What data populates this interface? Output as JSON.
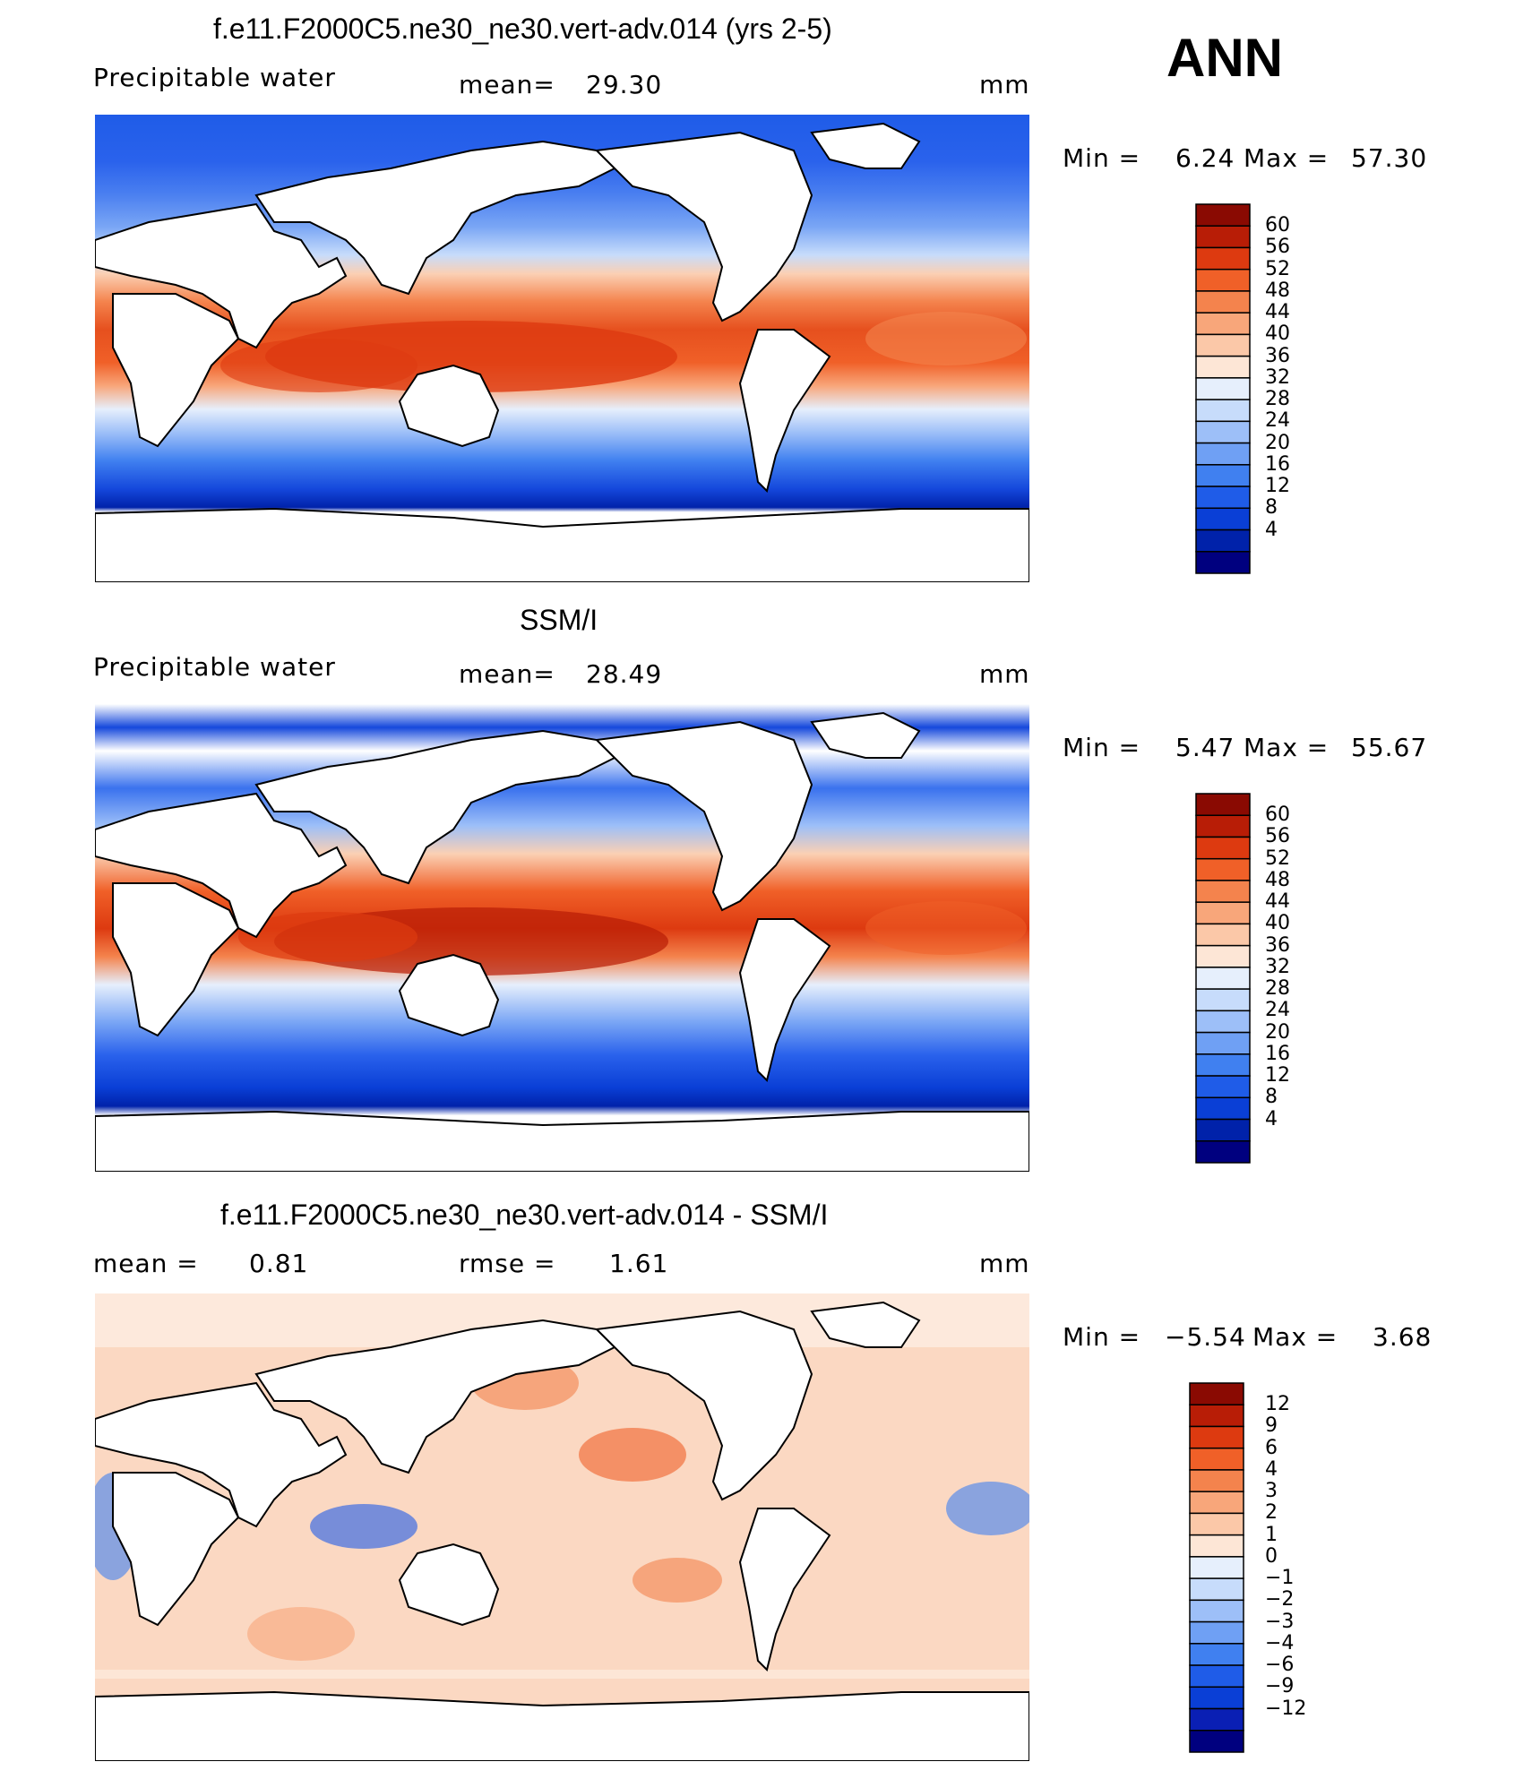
{
  "season": "ANN",
  "panels": [
    {
      "title": "f.e11.F2000C5.ne30_ne30.vert-adv.014 (yrs 2-5)",
      "left_label": "Precipitable water",
      "center_label": "mean=",
      "center_value": "29.30",
      "units": "mm",
      "min_label": "Min =",
      "min_value": "6.24",
      "max_label": "Max =",
      "max_value": "57.30"
    },
    {
      "title": "SSM/I",
      "left_label": "Precipitable water",
      "center_label": "mean=",
      "center_value": "28.49",
      "units": "mm",
      "min_label": "Min =",
      "min_value": "5.47",
      "max_label": "Max =",
      "max_value": "55.67"
    },
    {
      "title": "f.e11.F2000C5.ne30_ne30.vert-adv.014 - SSM/I",
      "left_label": "mean =",
      "left_value": "0.81",
      "center_label": "rmse =",
      "center_value": "1.61",
      "units": "mm",
      "min_label": "Min =",
      "min_value": "−5.54",
      "max_label": "Max =",
      "max_value": "3.68"
    }
  ],
  "colors": {
    "abs_scale": [
      "#00007f",
      "#0022aa",
      "#0a3fd6",
      "#1f5ce8",
      "#4080f0",
      "#6fa0f4",
      "#9dbff8",
      "#c7dcfb",
      "#e6effc",
      "#fde6d6",
      "#fbc8a8",
      "#f8a67a",
      "#f4834d",
      "#f06028",
      "#dd3a10",
      "#b81d06",
      "#8a0a02"
    ],
    "diff_scale": [
      "#00007f",
      "#0a1fb4",
      "#0a3fd6",
      "#1f5ce8",
      "#4080f0",
      "#6fa0f4",
      "#9dbff8",
      "#c7dcfb",
      "#e6effc",
      "#fde6d6",
      "#fbc8a8",
      "#f8a67a",
      "#f4834d",
      "#f06028",
      "#dd3a10",
      "#b81d06",
      "#8a0a02"
    ]
  },
  "chart_data": [
    {
      "type": "heatmap",
      "title": "f.e11.F2000C5.ne30_ne30.vert-adv.014 (yrs 2-5)",
      "variable": "Precipitable water",
      "units": "mm",
      "mean": 29.3,
      "min": 6.24,
      "max": 57.3,
      "colorbar_levels": [
        "60",
        "56",
        "52",
        "48",
        "44",
        "40",
        "36",
        "32",
        "28",
        "24",
        "20",
        "16",
        "12",
        "8",
        "4"
      ]
    },
    {
      "type": "heatmap",
      "title": "SSM/I",
      "variable": "Precipitable water",
      "units": "mm",
      "mean": 28.49,
      "min": 5.47,
      "max": 55.67,
      "colorbar_levels": [
        "60",
        "56",
        "52",
        "48",
        "44",
        "40",
        "36",
        "32",
        "28",
        "24",
        "20",
        "16",
        "12",
        "8",
        "4"
      ]
    },
    {
      "type": "heatmap",
      "title": "f.e11.F2000C5.ne30_ne30.vert-adv.014 - SSM/I",
      "units": "mm",
      "mean": 0.81,
      "rmse": 1.61,
      "min": -5.54,
      "max": 3.68,
      "colorbar_levels": [
        "12",
        "9",
        "6",
        "4",
        "3",
        "2",
        "1",
        "0",
        "−1",
        "−2",
        "−3",
        "−4",
        "−6",
        "−9",
        "−12"
      ]
    }
  ]
}
